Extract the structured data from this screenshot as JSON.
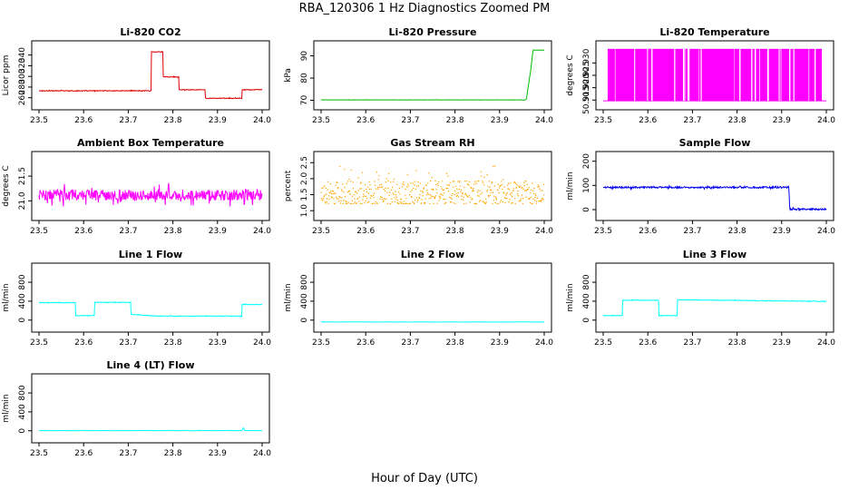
{
  "figure": {
    "title": "RBA_120306  1 Hz Diagnostics Zoomed PM",
    "xlabel": "Hour of Day (UTC)"
  },
  "chart_data": [
    {
      "type": "line",
      "title": "Li-820 CO2",
      "xlabel": "",
      "ylabel": "Licor ppm",
      "color": "#dd0000",
      "noise": 0.6,
      "x_ticks": [
        "23.5",
        "23.6",
        "23.7",
        "23.8",
        "23.9",
        "24.0"
      ],
      "xlim": [
        23.5,
        24.0
      ],
      "y_ticks": [
        "260",
        "280",
        "300",
        "320",
        "340"
      ],
      "ylim": [
        251,
        353
      ],
      "series": [
        {
          "x": [
            23.5,
            23.752,
            23.752,
            23.778,
            23.778,
            23.814,
            23.814,
            23.872,
            23.872,
            23.955,
            23.955,
            24.0
          ],
          "y": [
            273,
            273,
            346,
            346,
            299,
            299,
            275,
            275,
            259,
            259,
            275,
            275
          ]
        }
      ]
    },
    {
      "type": "line",
      "title": "Li-820 Pressure",
      "xlabel": "",
      "ylabel": "kPa",
      "color": "#00bb00",
      "noise": 0.05,
      "x_ticks": [
        "23.5",
        "23.6",
        "23.7",
        "23.8",
        "23.9",
        "24.0"
      ],
      "xlim": [
        23.5,
        24.0
      ],
      "y_ticks": [
        "70",
        "80",
        "90"
      ],
      "ylim": [
        69,
        93.5
      ],
      "series": [
        {
          "x": [
            23.5,
            23.95,
            23.955,
            23.96,
            23.97,
            23.975,
            24.0
          ],
          "y": [
            70.2,
            70.2,
            70.0,
            70.5,
            84,
            92.6,
            92.6
          ]
        }
      ]
    },
    {
      "type": "area",
      "title": "Li-820 Temperature",
      "xlabel": "",
      "ylabel": "degrees C",
      "color": "#ff00ff",
      "gaps_start": 23.51,
      "gaps_end": 23.99,
      "x_ticks": [
        "23.5",
        "23.6",
        "23.7",
        "23.8",
        "23.9",
        "24.0"
      ],
      "xlim": [
        23.5,
        24.0
      ],
      "y_ticks": [
        "50.915",
        "50.920",
        "50.925",
        "50.930"
      ],
      "ylim": [
        50.914,
        50.936
      ],
      "series": [
        {
          "x": [
            23.5,
            24.0
          ],
          "y": [
            50.9147,
            50.9357
          ]
        }
      ]
    },
    {
      "type": "line",
      "title": "Ambient Box Temperature",
      "xlabel": "",
      "ylabel": "degrees C",
      "color": "#ff00ff",
      "noise": 0.11,
      "x_ticks": [
        "23.5",
        "23.6",
        "23.7",
        "23.8",
        "23.9",
        "24.0"
      ],
      "xlim": [
        23.5,
        24.0
      ],
      "y_ticks": [
        "21.0",
        "21.5"
      ],
      "ylim": [
        20.75,
        21.85
      ],
      "series": [
        {
          "x": [
            23.5,
            24.0
          ],
          "y": [
            21.12,
            21.12
          ]
        }
      ]
    },
    {
      "type": "scatter",
      "title": "Gas Stream RH",
      "xlabel": "",
      "ylabel": "percent",
      "color": "#ffa500",
      "noise": 0.38,
      "x_ticks": [
        "23.5",
        "23.6",
        "23.7",
        "23.8",
        "23.9",
        "24.0"
      ],
      "xlim": [
        23.5,
        24.0
      ],
      "y_ticks": [
        "1.0",
        "1.5",
        "2.0",
        "2.5"
      ],
      "ylim": [
        0.92,
        2.62
      ],
      "series": [
        {
          "x": [
            23.5,
            24.0
          ],
          "y": [
            1.55,
            1.55
          ]
        }
      ]
    },
    {
      "type": "line",
      "title": "Sample Flow",
      "xlabel": "",
      "ylabel": "ml/min",
      "color": "#0000ee",
      "noise": 3.5,
      "x_ticks": [
        "23.5",
        "23.6",
        "23.7",
        "23.8",
        "23.9",
        "24.0"
      ],
      "xlim": [
        23.5,
        24.0
      ],
      "y_ticks": [
        "0",
        "100",
        "200"
      ],
      "ylim": [
        -15,
        210
      ],
      "series": [
        {
          "x": [
            23.5,
            23.916,
            23.918,
            24.0
          ],
          "y": [
            92,
            92,
            2,
            2
          ]
        }
      ]
    },
    {
      "type": "line",
      "title": "Line 1 Flow",
      "xlabel": "",
      "ylabel": "ml/min",
      "color": "#00ffff",
      "noise": 6,
      "x_ticks": [
        "23.5",
        "23.6",
        "23.7",
        "23.8",
        "23.9",
        "24.0"
      ],
      "xlim": [
        23.5,
        24.0
      ],
      "y_ticks": [
        "0",
        "400",
        "800"
      ],
      "ylim": [
        -100,
        1050
      ],
      "series": [
        {
          "x": [
            23.5,
            23.582,
            23.582,
            23.624,
            23.624,
            23.706,
            23.706,
            23.765,
            23.955,
            23.955,
            24.0
          ],
          "y": [
            370,
            370,
            95,
            95,
            375,
            375,
            120,
            85,
            85,
            330,
            330
          ]
        }
      ]
    },
    {
      "type": "line",
      "title": "Line 2 Flow",
      "xlabel": "",
      "ylabel": "ml/min",
      "color": "#00ffff",
      "noise": 1,
      "x_ticks": [
        "23.5",
        "23.6",
        "23.7",
        "23.8",
        "23.9",
        "24.0"
      ],
      "xlim": [
        23.5,
        24.0
      ],
      "y_ticks": [
        "0",
        "400",
        "800"
      ],
      "ylim": [
        -100,
        1050
      ],
      "series": [
        {
          "x": [
            23.5,
            24.0
          ],
          "y": [
            -40,
            -40
          ]
        }
      ]
    },
    {
      "type": "line",
      "title": "Line 3 Flow",
      "xlabel": "",
      "ylabel": "ml/min",
      "color": "#00ffff",
      "noise": 6,
      "x_ticks": [
        "23.5",
        "23.6",
        "23.7",
        "23.8",
        "23.9",
        "24.0"
      ],
      "xlim": [
        23.5,
        24.0
      ],
      "y_ticks": [
        "0",
        "400",
        "800"
      ],
      "ylim": [
        -100,
        1050
      ],
      "series": [
        {
          "x": [
            23.5,
            23.543,
            23.543,
            23.624,
            23.624,
            23.666,
            23.666,
            24.0
          ],
          "y": [
            95,
            95,
            420,
            420,
            95,
            95,
            430,
            395
          ]
        }
      ]
    },
    {
      "type": "line",
      "title": "Line 4 (LT) Flow",
      "xlabel": "",
      "ylabel": "ml/min",
      "color": "#00ffff",
      "noise": 3,
      "x_ticks": [
        "23.5",
        "23.6",
        "23.7",
        "23.8",
        "23.9",
        "24.0"
      ],
      "xlim": [
        23.5,
        24.0
      ],
      "y_ticks": [
        "0",
        "400",
        "800"
      ],
      "ylim": [
        -100,
        1050
      ],
      "series": [
        {
          "x": [
            23.5,
            23.955,
            23.958,
            23.961,
            24.0
          ],
          "y": [
            5,
            5,
            70,
            5,
            5
          ]
        }
      ]
    }
  ]
}
